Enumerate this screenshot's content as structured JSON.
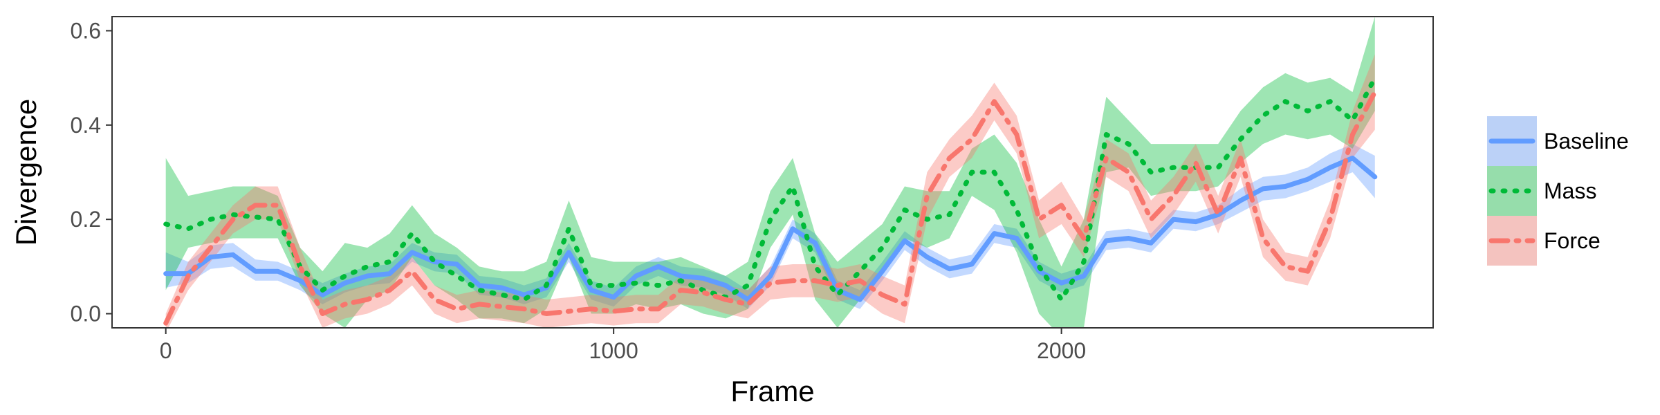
{
  "chart_data": {
    "type": "line",
    "xlabel": "Frame",
    "ylabel": "Divergence",
    "xlim": [
      -120,
      2830
    ],
    "ylim": [
      -0.03,
      0.63
    ],
    "x_ticks": [
      0,
      1000,
      2000
    ],
    "x_tick_labels": [
      "0",
      "1000",
      "2000"
    ],
    "y_ticks": [
      0.0,
      0.2,
      0.4,
      0.6
    ],
    "y_tick_labels": [
      "0.0",
      "0.2",
      "0.4",
      "0.6"
    ],
    "grid": false,
    "legend_position": "right",
    "x": [
      0,
      50,
      100,
      150,
      200,
      250,
      300,
      350,
      400,
      450,
      500,
      550,
      600,
      650,
      700,
      750,
      800,
      850,
      900,
      950,
      1000,
      1050,
      1100,
      1150,
      1200,
      1250,
      1300,
      1350,
      1400,
      1450,
      1500,
      1550,
      1600,
      1650,
      1700,
      1750,
      1800,
      1850,
      1900,
      1950,
      2000,
      2050,
      2100,
      2150,
      2200,
      2250,
      2300,
      2350,
      2400,
      2450,
      2500,
      2550,
      2600,
      2650,
      2700
    ],
    "series": [
      {
        "name": "Baseline",
        "color": "#619CFF",
        "line_style": "solid",
        "y": [
          0.085,
          0.085,
          0.12,
          0.125,
          0.09,
          0.09,
          0.07,
          0.04,
          0.065,
          0.08,
          0.085,
          0.13,
          0.11,
          0.105,
          0.06,
          0.055,
          0.04,
          0.055,
          0.13,
          0.05,
          0.035,
          0.08,
          0.1,
          0.08,
          0.075,
          0.06,
          0.03,
          0.08,
          0.18,
          0.15,
          0.05,
          0.03,
          0.09,
          0.155,
          0.12,
          0.095,
          0.105,
          0.17,
          0.16,
          0.09,
          0.065,
          0.08,
          0.155,
          0.16,
          0.15,
          0.2,
          0.195,
          0.21,
          0.24,
          0.265,
          0.27,
          0.285,
          0.31,
          0.33,
          0.29
        ],
        "lower": [
          0.055,
          0.065,
          0.095,
          0.1,
          0.07,
          0.07,
          0.05,
          0.02,
          0.045,
          0.06,
          0.065,
          0.11,
          0.09,
          0.085,
          0.04,
          0.035,
          0.02,
          0.035,
          0.11,
          0.03,
          0.015,
          0.06,
          0.08,
          0.06,
          0.055,
          0.04,
          0.01,
          0.06,
          0.16,
          0.13,
          0.03,
          0.01,
          0.07,
          0.135,
          0.1,
          0.075,
          0.085,
          0.15,
          0.14,
          0.07,
          0.045,
          0.06,
          0.135,
          0.14,
          0.13,
          0.18,
          0.175,
          0.19,
          0.215,
          0.24,
          0.245,
          0.26,
          0.28,
          0.3,
          0.245
        ],
        "upper": [
          0.13,
          0.11,
          0.145,
          0.15,
          0.115,
          0.11,
          0.09,
          0.065,
          0.085,
          0.1,
          0.105,
          0.15,
          0.13,
          0.125,
          0.08,
          0.075,
          0.06,
          0.075,
          0.15,
          0.07,
          0.055,
          0.1,
          0.12,
          0.1,
          0.095,
          0.08,
          0.05,
          0.1,
          0.2,
          0.17,
          0.07,
          0.05,
          0.11,
          0.175,
          0.14,
          0.115,
          0.125,
          0.19,
          0.18,
          0.11,
          0.085,
          0.1,
          0.175,
          0.18,
          0.17,
          0.22,
          0.215,
          0.23,
          0.265,
          0.29,
          0.295,
          0.31,
          0.34,
          0.36,
          0.335
        ]
      },
      {
        "name": "Mass",
        "color": "#00BA38",
        "line_style": "dotted",
        "y": [
          0.19,
          0.18,
          0.2,
          0.21,
          0.205,
          0.2,
          0.1,
          0.05,
          0.08,
          0.1,
          0.11,
          0.17,
          0.11,
          0.08,
          0.05,
          0.04,
          0.03,
          0.06,
          0.18,
          0.06,
          0.06,
          0.065,
          0.06,
          0.07,
          0.05,
          0.035,
          0.06,
          0.2,
          0.27,
          0.1,
          0.04,
          0.09,
          0.14,
          0.22,
          0.2,
          0.21,
          0.3,
          0.3,
          0.22,
          0.1,
          0.03,
          0.11,
          0.38,
          0.36,
          0.3,
          0.31,
          0.31,
          0.31,
          0.37,
          0.42,
          0.45,
          0.43,
          0.45,
          0.41,
          0.5
        ],
        "lower": [
          0.05,
          0.14,
          0.15,
          0.16,
          0.16,
          0.16,
          0.06,
          0.0,
          -0.03,
          0.03,
          0.05,
          0.12,
          0.06,
          0.03,
          -0.01,
          -0.01,
          -0.02,
          0.01,
          0.12,
          0.0,
          0.0,
          0.02,
          0.01,
          0.02,
          0.0,
          -0.01,
          0.01,
          0.14,
          0.21,
          0.03,
          -0.03,
          0.03,
          0.09,
          0.16,
          0.14,
          0.16,
          0.25,
          0.22,
          0.13,
          0.0,
          -0.05,
          -0.03,
          0.3,
          0.31,
          0.25,
          0.26,
          0.26,
          0.27,
          0.32,
          0.36,
          0.38,
          0.37,
          0.38,
          0.35,
          0.43
        ],
        "upper": [
          0.33,
          0.25,
          0.26,
          0.27,
          0.27,
          0.25,
          0.14,
          0.09,
          0.15,
          0.14,
          0.17,
          0.23,
          0.17,
          0.14,
          0.1,
          0.09,
          0.09,
          0.11,
          0.24,
          0.12,
          0.11,
          0.11,
          0.11,
          0.12,
          0.1,
          0.08,
          0.11,
          0.26,
          0.33,
          0.17,
          0.11,
          0.15,
          0.19,
          0.27,
          0.26,
          0.26,
          0.35,
          0.38,
          0.32,
          0.2,
          0.1,
          0.2,
          0.46,
          0.41,
          0.36,
          0.36,
          0.36,
          0.36,
          0.43,
          0.48,
          0.51,
          0.49,
          0.5,
          0.47,
          0.63
        ]
      },
      {
        "name": "Force",
        "color": "#F8766D",
        "line_style": "dashdot",
        "y": [
          -0.02,
          0.08,
          0.14,
          0.2,
          0.23,
          0.23,
          0.1,
          0.0,
          0.02,
          0.03,
          0.05,
          0.09,
          0.03,
          0.01,
          0.02,
          0.015,
          0.01,
          0.0,
          0.005,
          0.01,
          0.005,
          0.01,
          0.01,
          0.05,
          0.045,
          0.03,
          0.02,
          0.065,
          0.07,
          0.07,
          0.06,
          0.07,
          0.04,
          0.02,
          0.25,
          0.33,
          0.37,
          0.45,
          0.38,
          0.2,
          0.23,
          0.16,
          0.33,
          0.3,
          0.2,
          0.25,
          0.32,
          0.21,
          0.33,
          0.16,
          0.1,
          0.09,
          0.2,
          0.38,
          0.47
        ],
        "lower": [
          -0.04,
          0.05,
          0.11,
          0.17,
          0.2,
          0.2,
          0.07,
          -0.03,
          -0.01,
          0.0,
          0.02,
          0.06,
          0.0,
          -0.02,
          -0.01,
          -0.015,
          -0.02,
          -0.03,
          -0.025,
          -0.02,
          -0.025,
          -0.02,
          -0.02,
          0.02,
          0.015,
          0.0,
          -0.01,
          0.03,
          0.035,
          0.035,
          0.025,
          0.035,
          0.0,
          -0.02,
          0.2,
          0.29,
          0.33,
          0.41,
          0.34,
          0.16,
          0.19,
          0.12,
          0.29,
          0.26,
          0.16,
          0.21,
          0.28,
          0.17,
          0.29,
          0.12,
          0.07,
          0.06,
          0.16,
          0.33,
          0.39
        ],
        "upper": [
          0.0,
          0.11,
          0.17,
          0.23,
          0.27,
          0.27,
          0.14,
          0.03,
          0.05,
          0.06,
          0.08,
          0.12,
          0.06,
          0.04,
          0.05,
          0.045,
          0.04,
          0.03,
          0.035,
          0.04,
          0.035,
          0.04,
          0.04,
          0.08,
          0.075,
          0.06,
          0.05,
          0.1,
          0.105,
          0.105,
          0.095,
          0.105,
          0.08,
          0.06,
          0.3,
          0.37,
          0.42,
          0.49,
          0.42,
          0.24,
          0.28,
          0.2,
          0.37,
          0.34,
          0.24,
          0.29,
          0.36,
          0.25,
          0.37,
          0.2,
          0.13,
          0.12,
          0.24,
          0.43,
          0.55
        ]
      }
    ]
  }
}
